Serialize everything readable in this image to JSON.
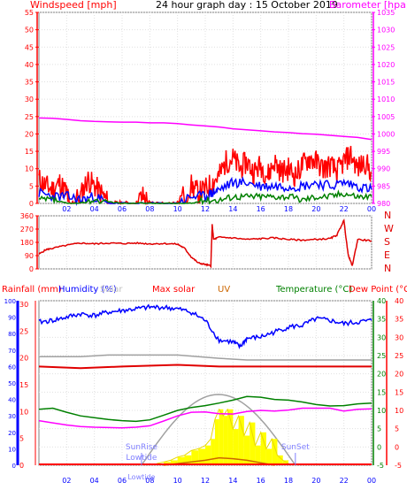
{
  "colors": {
    "wind": "#ff0000",
    "gust": "#ff0000",
    "windavg": "#0000ff",
    "windlull": "#008000",
    "baro": "#ff00ff",
    "direction": "#e00000",
    "rain": "#0000ff",
    "humidity": "#0000ff",
    "solar": "#ffff00",
    "maxsolar": "#a0a0a0",
    "uv": "#cc6600",
    "temp": "#008000",
    "dew": "#ff00ff",
    "dewlabel": "#ff0000",
    "sunmark": "#8080ff",
    "axis": "#0000ff",
    "grid": "#e0e0e0",
    "tickred": "#ff0000"
  },
  "chart_data": [
    {
      "type": "line",
      "title": "24 hour graph day : 15 October 2019",
      "left_axis_label": "Windspeed [mph]",
      "right_axis_label": "Barometer [hpa]",
      "x_ticks": [
        "02",
        "04",
        "06",
        "08",
        "10",
        "12",
        "14",
        "16",
        "18",
        "20",
        "22",
        "00"
      ],
      "x_range": [
        0,
        24
      ],
      "ylim_left": [
        0,
        55
      ],
      "yticks_left": [
        0,
        5,
        10,
        15,
        20,
        25,
        30,
        35,
        40,
        45,
        50,
        55
      ],
      "ylim_right": [
        980,
        1035
      ],
      "yticks_right": [
        980,
        985,
        990,
        995,
        1000,
        1005,
        1010,
        1015,
        1020,
        1025,
        1030,
        1035
      ],
      "series": [
        {
          "key": "baro",
          "axis": "right",
          "x": [
            0,
            1,
            2,
            3,
            4,
            5,
            6,
            7,
            8,
            9,
            10,
            11,
            12,
            13,
            14,
            15,
            16,
            17,
            18,
            19,
            20,
            21,
            22,
            23,
            24
          ],
          "y": [
            1004.6,
            1004.5,
            1004.2,
            1003.8,
            1003.6,
            1003.5,
            1003.4,
            1003.4,
            1003.2,
            1003.2,
            1003.0,
            1002.6,
            1002.3,
            1002.0,
            1001.5,
            1001.2,
            1000.9,
            1000.6,
            1000.4,
            1000.1,
            999.9,
            999.6,
            999.3,
            999.0,
            998.4
          ]
        },
        {
          "key": "gust",
          "axis": "left",
          "x": [
            0,
            0.5,
            1,
            1.5,
            2,
            2.2,
            3,
            3.5,
            4,
            4.5,
            5,
            5.5,
            6,
            7,
            7.5,
            8,
            9,
            10,
            11,
            11.5,
            12,
            12.5,
            13,
            13.5,
            14,
            14.5,
            15,
            15.5,
            16,
            16.5,
            17,
            17.5,
            18,
            18.5,
            19,
            19.5,
            20,
            20.5,
            21,
            21.5,
            22,
            22.5,
            23,
            23.5,
            24
          ],
          "y": [
            7,
            5,
            4,
            6,
            3,
            0,
            2,
            7,
            5,
            3,
            0,
            0,
            0,
            0,
            2,
            0,
            0,
            0,
            5,
            3,
            4,
            6,
            8,
            12,
            13,
            10,
            12,
            9,
            11,
            8,
            12,
            9,
            10,
            8,
            11,
            13,
            12,
            10,
            11,
            9,
            12,
            14,
            10,
            12,
            9
          ]
        },
        {
          "key": "windavg",
          "axis": "left",
          "x": [
            0,
            1,
            2,
            3,
            4,
            5,
            6,
            8,
            10,
            11,
            12,
            12.5,
            13,
            14,
            15,
            16,
            17,
            18,
            19,
            20,
            21,
            22,
            23,
            24
          ],
          "y": [
            3,
            2,
            2,
            1,
            2,
            0,
            0,
            0,
            0,
            2,
            2,
            3,
            4,
            6,
            6,
            5,
            5,
            5,
            5,
            6,
            5,
            6,
            5,
            4
          ]
        },
        {
          "key": "windlull",
          "axis": "left",
          "x": [
            0,
            1,
            2,
            3,
            4,
            6,
            8,
            10,
            11,
            12,
            13,
            14,
            15,
            16,
            17,
            18,
            19,
            20,
            21,
            22,
            23,
            24
          ],
          "y": [
            1,
            1,
            0,
            0,
            1,
            0,
            0,
            0,
            0,
            1,
            1,
            2,
            2,
            2,
            2,
            2,
            1,
            2,
            2,
            3,
            2,
            2
          ]
        }
      ]
    },
    {
      "type": "line",
      "title": "",
      "right_axis_label": "",
      "x_range": [
        0,
        24
      ],
      "ylim": [
        0,
        360
      ],
      "yticks": [
        0,
        90,
        180,
        270,
        360
      ],
      "direction_labels": [
        "N",
        "W",
        "S",
        "E",
        "N"
      ],
      "series": [
        {
          "key": "direction",
          "x": [
            0,
            0.5,
            1,
            2,
            3,
            4,
            5,
            6,
            7,
            8,
            9,
            10,
            10.5,
            11,
            11.5,
            12,
            12.4,
            12.5,
            12.6,
            13,
            14,
            15,
            16,
            17,
            18,
            19,
            20,
            21,
            21.5,
            22,
            22.3,
            22.6,
            23,
            24
          ],
          "y": [
            100,
            130,
            140,
            160,
            175,
            170,
            175,
            172,
            175,
            170,
            172,
            168,
            140,
            80,
            40,
            30,
            20,
            300,
            200,
            215,
            210,
            200,
            205,
            210,
            200,
            195,
            200,
            205,
            230,
            330,
            100,
            20,
            200,
            190
          ]
        }
      ]
    },
    {
      "type": "line",
      "title": "",
      "legend": [
        "Rainfall (mm)",
        "Humidity (%)",
        "Solar",
        "Max solar",
        "UV",
        "Temperature (°C)",
        "Dew Point (°C)"
      ],
      "x_ticks": [
        "02",
        "04",
        "06",
        "08",
        "10",
        "12",
        "14",
        "16",
        "18",
        "20",
        "22",
        "00"
      ],
      "x_range": [
        0,
        24
      ],
      "rain_ticks": [
        0,
        5,
        10,
        15,
        20,
        25,
        30
      ],
      "humidity_ticks": [
        0,
        10,
        20,
        30,
        40,
        50,
        60,
        70,
        80,
        90,
        100
      ],
      "temp_ticks": [
        -5,
        0,
        5,
        10,
        15,
        20,
        25,
        30,
        35,
        40
      ],
      "annotations": {
        "sunrise": "SunRise",
        "sunset": "SunSet",
        "lowtide": "Lowtide"
      },
      "sunrise_hour": 7.4,
      "sunset_hour": 18.5,
      "max_solar_peak_pct": 43,
      "series": [
        {
          "key": "humidity",
          "axis": "humidity",
          "x": [
            0,
            1,
            2,
            3,
            4,
            5,
            6,
            7,
            8,
            9,
            10,
            11,
            12,
            13,
            14,
            14.5,
            15,
            16,
            17,
            18,
            19,
            20,
            21,
            22,
            23,
            24
          ],
          "y": [
            87,
            88,
            90,
            92,
            91,
            93,
            94,
            95,
            96,
            96,
            95,
            93,
            88,
            76,
            75,
            72,
            77,
            78,
            81,
            84,
            85,
            89,
            88,
            86,
            87,
            88
          ]
        },
        {
          "key": "temp",
          "axis": "temp",
          "x": [
            0,
            1,
            2,
            3,
            4,
            5,
            6,
            7,
            8,
            9,
            10,
            11,
            12,
            13,
            14,
            15,
            16,
            17,
            18,
            19,
            20,
            21,
            22,
            23,
            24
          ],
          "y": [
            10.3,
            10.6,
            9.5,
            8.5,
            8.0,
            7.5,
            7.2,
            7.0,
            7.4,
            8.7,
            10.0,
            10.8,
            11.3,
            12.0,
            12.8,
            13.8,
            13.6,
            13.0,
            12.8,
            12.3,
            11.6,
            11.2,
            11.3,
            11.8,
            12.0
          ]
        },
        {
          "key": "dew",
          "axis": "temp",
          "x": [
            0,
            1,
            2,
            3,
            4,
            5,
            6,
            7,
            8,
            9,
            10,
            11,
            12,
            13,
            14,
            15,
            16,
            17,
            18,
            19,
            20,
            21,
            22,
            23,
            24
          ],
          "y": [
            7.2,
            6.6,
            6.0,
            5.6,
            5.4,
            5.3,
            5.2,
            5.4,
            5.8,
            7.1,
            8.5,
            9.5,
            9.6,
            9.1,
            9.0,
            9.7,
            10.0,
            9.8,
            10.1,
            10.6,
            10.6,
            10.6,
            9.8,
            10.3,
            10.4
          ]
        },
        {
          "key": "maxsolar_flat",
          "axis": "humidity",
          "x": [
            0,
            3,
            5,
            10,
            13,
            15,
            17,
            24
          ],
          "y": [
            66,
            66,
            67,
            67,
            65,
            64,
            64,
            64
          ]
        },
        {
          "key": "red_level",
          "axis": "humidity",
          "x": [
            0,
            3,
            6,
            10,
            13,
            16,
            20,
            24
          ],
          "y": [
            60,
            59,
            60,
            61,
            60,
            60,
            60,
            60
          ]
        },
        {
          "key": "solar",
          "axis": "pct",
          "x": [
            8.5,
            9,
            9.5,
            10,
            10.5,
            11,
            11.5,
            12,
            12.4,
            12.7,
            13,
            13.3,
            13.6,
            14,
            14.4,
            14.8,
            15.2,
            15.6,
            16,
            16.4,
            16.8,
            17.2,
            17.6,
            18
          ],
          "y": [
            1,
            2,
            3,
            5,
            6,
            9,
            10,
            12,
            16,
            28,
            34,
            30,
            34,
            22,
            30,
            18,
            26,
            12,
            20,
            10,
            16,
            6,
            3,
            1
          ]
        }
      ]
    }
  ]
}
